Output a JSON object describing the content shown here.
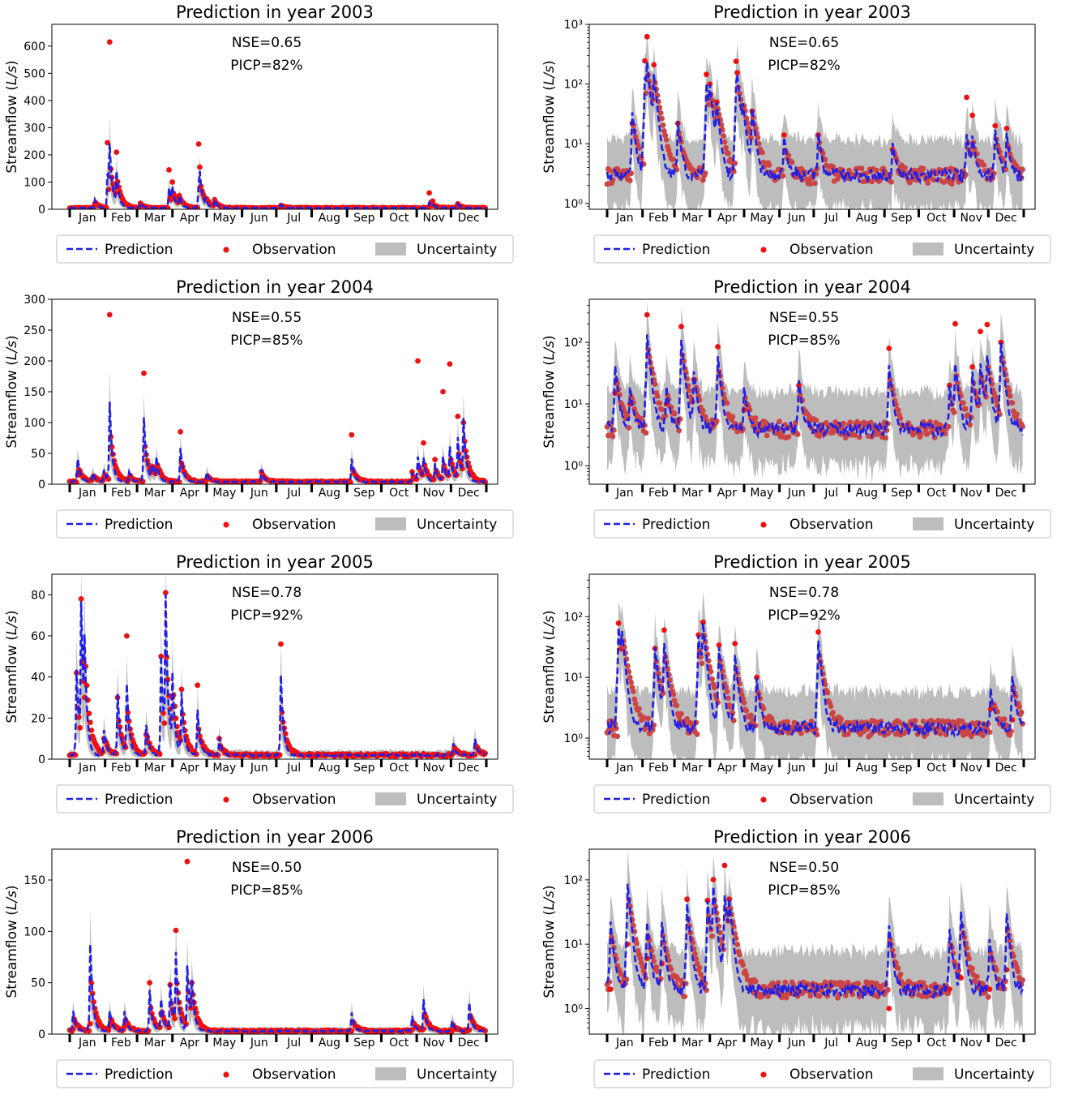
{
  "legend": {
    "prediction": "Prediction",
    "observation": "Observation",
    "uncertainty": "Uncertainty"
  },
  "colors": {
    "prediction": "#1f1fe6",
    "observation_linear": "#ee1111",
    "observation_log": "#cc4444",
    "observation_log_peak": "#ee1111",
    "uncertainty": "#bdbdbd"
  },
  "ylabel_prefix": "Streamflow (",
  "ylabel_unit": "L/s",
  "ylabel_suffix": ")",
  "months": [
    "Jan",
    "Feb",
    "Mar",
    "Apr",
    "May",
    "Jun",
    "Jul",
    "Aug",
    "Sep",
    "Oct",
    "Nov",
    "Dec"
  ],
  "chart_data": [
    {
      "type": "line",
      "scale": "linear",
      "year": 2003,
      "title": "Prediction in year 2003",
      "nse": "NSE=0.65",
      "picp": "PICP=82%",
      "ylim": [
        0,
        680
      ],
      "yticks": [
        0,
        100,
        200,
        300,
        400,
        500,
        600
      ],
      "yticklabels": [
        "0",
        "100",
        "200",
        "300",
        "400",
        "500",
        "600"
      ],
      "base_level": 5,
      "events": [
        {
          "day": 35,
          "peak": 190,
          "obs": 615
        },
        {
          "day": 33,
          "peak": 120,
          "obs": 245
        },
        {
          "day": 41,
          "peak": 120,
          "obs": 210
        },
        {
          "day": 22,
          "peak": 30,
          "obs": 20
        },
        {
          "day": 62,
          "peak": 20,
          "obs": 22
        },
        {
          "day": 87,
          "peak": 75,
          "obs": 145
        },
        {
          "day": 90,
          "peak": 60,
          "obs": 100
        },
        {
          "day": 96,
          "peak": 40,
          "obs": 50
        },
        {
          "day": 113,
          "peak": 80,
          "obs": 240
        },
        {
          "day": 114,
          "peak": 85,
          "obs": 155
        },
        {
          "day": 119,
          "peak": 20,
          "obs": 40
        },
        {
          "day": 127,
          "peak": 30,
          "obs": 35
        },
        {
          "day": 185,
          "peak": 12,
          "obs": 14
        },
        {
          "day": 315,
          "peak": 20,
          "obs": 60
        },
        {
          "day": 318,
          "peak": 10,
          "obs": 30
        },
        {
          "day": 340,
          "peak": 15,
          "obs": 20
        }
      ]
    },
    {
      "type": "line",
      "scale": "log",
      "year": 2003,
      "title": "Prediction in year 2003",
      "nse": "NSE=0.65",
      "picp": "PICP=82%",
      "ylim": [
        0.8,
        1000
      ],
      "yticks": [
        1,
        10,
        100,
        1000
      ],
      "yticklabels": [
        "10⁰",
        "10¹",
        "10²",
        "10³"
      ],
      "base_level": 3,
      "events": [
        {
          "day": 35,
          "peak": 180,
          "obs": 620
        },
        {
          "day": 33,
          "peak": 120,
          "obs": 245
        },
        {
          "day": 41,
          "peak": 130,
          "obs": 210
        },
        {
          "day": 22,
          "peak": 30,
          "obs": 22
        },
        {
          "day": 62,
          "peak": 20,
          "obs": 22
        },
        {
          "day": 87,
          "peak": 100,
          "obs": 145
        },
        {
          "day": 90,
          "peak": 70,
          "obs": 100
        },
        {
          "day": 96,
          "peak": 40,
          "obs": 50
        },
        {
          "day": 113,
          "peak": 90,
          "obs": 240
        },
        {
          "day": 114,
          "peak": 85,
          "obs": 155
        },
        {
          "day": 119,
          "peak": 30,
          "obs": 40
        },
        {
          "day": 127,
          "peak": 35,
          "obs": 35
        },
        {
          "day": 155,
          "peak": 10,
          "obs": 14
        },
        {
          "day": 185,
          "peak": 12,
          "obs": 14
        },
        {
          "day": 250,
          "peak": 7,
          "obs": 8
        },
        {
          "day": 315,
          "peak": 12,
          "obs": 60
        },
        {
          "day": 320,
          "peak": 10,
          "obs": 30
        },
        {
          "day": 340,
          "peak": 15,
          "obs": 20
        },
        {
          "day": 350,
          "peak": 12,
          "obs": 18
        }
      ]
    },
    {
      "type": "line",
      "scale": "linear",
      "year": 2004,
      "title": "Prediction in year 2004",
      "nse": "NSE=0.55",
      "picp": "PICP=85%",
      "ylim": [
        0,
        300
      ],
      "yticks": [
        0,
        50,
        100,
        150,
        200,
        250,
        300
      ],
      "yticklabels": [
        "0",
        "50",
        "100",
        "150",
        "200",
        "250",
        "300"
      ],
      "base_level": 4,
      "events": [
        {
          "day": 7,
          "peak": 38,
          "obs": 15
        },
        {
          "day": 20,
          "peak": 15,
          "obs": 10
        },
        {
          "day": 30,
          "peak": 20,
          "obs": 12
        },
        {
          "day": 35,
          "peak": 128,
          "obs": 275
        },
        {
          "day": 52,
          "peak": 15,
          "obs": 10
        },
        {
          "day": 65,
          "peak": 105,
          "obs": 180
        },
        {
          "day": 72,
          "peak": 25,
          "obs": 20
        },
        {
          "day": 76,
          "peak": 35,
          "obs": 25
        },
        {
          "day": 97,
          "peak": 55,
          "obs": 85
        },
        {
          "day": 120,
          "peak": 15,
          "obs": 8
        },
        {
          "day": 168,
          "peak": 20,
          "obs": 20
        },
        {
          "day": 247,
          "peak": 38,
          "obs": 80
        },
        {
          "day": 300,
          "peak": 15,
          "obs": 20
        },
        {
          "day": 305,
          "peak": 40,
          "obs": 200
        },
        {
          "day": 310,
          "peak": 35,
          "obs": 67
        },
        {
          "day": 320,
          "peak": 30,
          "obs": 40
        },
        {
          "day": 327,
          "peak": 40,
          "obs": 150
        },
        {
          "day": 333,
          "peak": 55,
          "obs": 195
        },
        {
          "day": 340,
          "peak": 70,
          "obs": 110
        },
        {
          "day": 345,
          "peak": 95,
          "obs": 100
        }
      ]
    },
    {
      "type": "line",
      "scale": "log",
      "year": 2004,
      "title": "Prediction in year 2004",
      "nse": "NSE=0.55",
      "picp": "PICP=85%",
      "ylim": [
        0.5,
        500
      ],
      "yticks": [
        1,
        10,
        100
      ],
      "yticklabels": [
        "10⁰",
        "10¹",
        "10²"
      ],
      "base_level": 4,
      "events": [
        {
          "day": 7,
          "peak": 38,
          "obs": 15
        },
        {
          "day": 20,
          "peak": 15,
          "obs": 10
        },
        {
          "day": 35,
          "peak": 130,
          "obs": 280
        },
        {
          "day": 52,
          "peak": 15,
          "obs": 10
        },
        {
          "day": 65,
          "peak": 105,
          "obs": 180
        },
        {
          "day": 76,
          "peak": 30,
          "obs": 25
        },
        {
          "day": 97,
          "peak": 55,
          "obs": 85
        },
        {
          "day": 120,
          "peak": 15,
          "obs": 8
        },
        {
          "day": 168,
          "peak": 20,
          "obs": 20
        },
        {
          "day": 247,
          "peak": 38,
          "obs": 80
        },
        {
          "day": 300,
          "peak": 15,
          "obs": 20
        },
        {
          "day": 305,
          "peak": 40,
          "obs": 200
        },
        {
          "day": 320,
          "peak": 30,
          "obs": 40
        },
        {
          "day": 327,
          "peak": 40,
          "obs": 150
        },
        {
          "day": 333,
          "peak": 55,
          "obs": 195
        },
        {
          "day": 345,
          "peak": 95,
          "obs": 100
        }
      ]
    },
    {
      "type": "line",
      "scale": "linear",
      "year": 2005,
      "title": "Prediction in year 2005",
      "nse": "NSE=0.78",
      "picp": "PICP=92%",
      "ylim": [
        0,
        90
      ],
      "yticks": [
        0,
        20,
        40,
        60,
        80
      ],
      "yticklabels": [
        "0",
        "20",
        "40",
        "60",
        "80"
      ],
      "base_level": 2,
      "events": [
        {
          "day": 6,
          "peak": 42,
          "obs": 42
        },
        {
          "day": 10,
          "peak": 68,
          "obs": 78
        },
        {
          "day": 13,
          "peak": 40,
          "obs": 30
        },
        {
          "day": 30,
          "peak": 12,
          "obs": 10
        },
        {
          "day": 42,
          "peak": 30,
          "obs": 30
        },
        {
          "day": 50,
          "peak": 34,
          "obs": 60
        },
        {
          "day": 67,
          "peak": 15,
          "obs": 12
        },
        {
          "day": 80,
          "peak": 48,
          "obs": 50
        },
        {
          "day": 84,
          "peak": 70,
          "obs": 81
        },
        {
          "day": 90,
          "peak": 35,
          "obs": 30
        },
        {
          "day": 98,
          "peak": 30,
          "obs": 34
        },
        {
          "day": 112,
          "peak": 22,
          "obs": 36
        },
        {
          "day": 131,
          "peak": 8,
          "obs": 10
        },
        {
          "day": 185,
          "peak": 39,
          "obs": 56
        },
        {
          "day": 336,
          "peak": 6,
          "obs": 3
        },
        {
          "day": 355,
          "peak": 8,
          "obs": 2
        }
      ]
    },
    {
      "type": "line",
      "scale": "log",
      "year": 2005,
      "title": "Prediction in year 2005",
      "nse": "NSE=0.78",
      "picp": "PICP=92%",
      "ylim": [
        0.45,
        500
      ],
      "yticks": [
        1,
        10,
        100
      ],
      "yticklabels": [
        "10⁰",
        "10¹",
        "10²"
      ],
      "base_level": 1.5,
      "events": [
        {
          "day": 10,
          "peak": 65,
          "obs": 78
        },
        {
          "day": 13,
          "peak": 40,
          "obs": 30
        },
        {
          "day": 42,
          "peak": 30,
          "obs": 30
        },
        {
          "day": 50,
          "peak": 34,
          "obs": 60
        },
        {
          "day": 80,
          "peak": 48,
          "obs": 50
        },
        {
          "day": 84,
          "peak": 70,
          "obs": 81
        },
        {
          "day": 98,
          "peak": 30,
          "obs": 34
        },
        {
          "day": 112,
          "peak": 22,
          "obs": 36
        },
        {
          "day": 131,
          "peak": 8,
          "obs": 10
        },
        {
          "day": 185,
          "peak": 39,
          "obs": 56
        },
        {
          "day": 336,
          "peak": 5,
          "obs": 3
        },
        {
          "day": 355,
          "peak": 9,
          "obs": 2
        }
      ]
    },
    {
      "type": "line",
      "scale": "linear",
      "year": 2006,
      "title": "Prediction in year 2006",
      "nse": "NSE=0.50",
      "picp": "PICP=85%",
      "ylim": [
        0,
        180
      ],
      "yticks": [
        0,
        50,
        100,
        150
      ],
      "yticklabels": [
        "0",
        "50",
        "100",
        "150"
      ],
      "base_level": 3,
      "events": [
        {
          "day": 3,
          "peak": 20,
          "obs": 5
        },
        {
          "day": 18,
          "peak": 85,
          "obs": 10
        },
        {
          "day": 35,
          "peak": 20,
          "obs": 8
        },
        {
          "day": 48,
          "peak": 20,
          "obs": 8
        },
        {
          "day": 70,
          "peak": 40,
          "obs": 50
        },
        {
          "day": 80,
          "peak": 30,
          "obs": 20
        },
        {
          "day": 88,
          "peak": 45,
          "obs": 48
        },
        {
          "day": 93,
          "peak": 72,
          "obs": 101
        },
        {
          "day": 103,
          "peak": 63,
          "obs": 168
        },
        {
          "day": 107,
          "peak": 40,
          "obs": 50
        },
        {
          "day": 247,
          "peak": 18,
          "obs": 3
        },
        {
          "day": 300,
          "peak": 15,
          "obs": 4
        },
        {
          "day": 310,
          "peak": 30,
          "obs": 5
        },
        {
          "day": 335,
          "peak": 10,
          "obs": 3
        },
        {
          "day": 350,
          "peak": 28,
          "obs": 4
        }
      ]
    },
    {
      "type": "line",
      "scale": "log",
      "year": 2006,
      "title": "Prediction in year 2006",
      "nse": "NSE=0.50",
      "picp": "PICP=85%",
      "ylim": [
        0.4,
        300
      ],
      "yticks": [
        1,
        10,
        100
      ],
      "yticklabels": [
        "10⁰",
        "10¹",
        "10²"
      ],
      "base_level": 2,
      "events": [
        {
          "day": 3,
          "peak": 20,
          "obs": 2
        },
        {
          "day": 18,
          "peak": 85,
          "obs": 10
        },
        {
          "day": 35,
          "peak": 20,
          "obs": 6
        },
        {
          "day": 48,
          "peak": 20,
          "obs": 5
        },
        {
          "day": 70,
          "peak": 40,
          "obs": 50
        },
        {
          "day": 88,
          "peak": 45,
          "obs": 48
        },
        {
          "day": 93,
          "peak": 72,
          "obs": 101
        },
        {
          "day": 103,
          "peak": 55,
          "obs": 168
        },
        {
          "day": 107,
          "peak": 40,
          "obs": 50
        },
        {
          "day": 247,
          "peak": 18,
          "obs": 1
        },
        {
          "day": 300,
          "peak": 15,
          "obs": 2
        },
        {
          "day": 310,
          "peak": 30,
          "obs": 3
        },
        {
          "day": 335,
          "peak": 10,
          "obs": 2
        },
        {
          "day": 350,
          "peak": 28,
          "obs": 4
        }
      ]
    }
  ]
}
